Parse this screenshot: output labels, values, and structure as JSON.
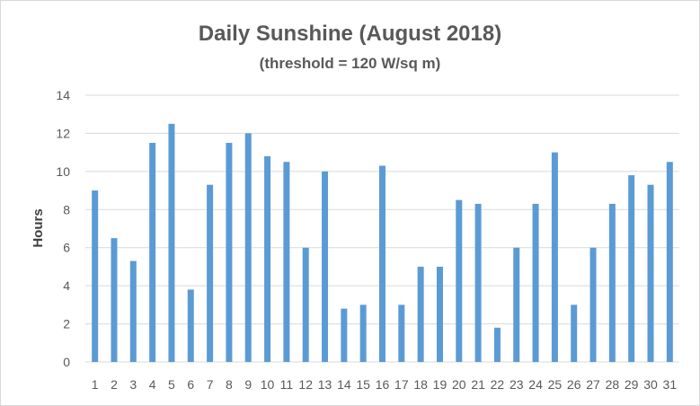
{
  "chart_data": {
    "type": "bar",
    "title": "Daily Sunshine (August 2018)",
    "subtitle": "(threshold = 120 W/sq m)",
    "xlabel": "",
    "ylabel": "Hours",
    "ylim": [
      0,
      14
    ],
    "yticks": [
      "0",
      "2",
      "4",
      "6",
      "8",
      "10",
      "12",
      "14"
    ],
    "categories": [
      "1",
      "2",
      "3",
      "4",
      "5",
      "6",
      "7",
      "8",
      "9",
      "10",
      "11",
      "12",
      "13",
      "14",
      "15",
      "16",
      "17",
      "18",
      "19",
      "20",
      "21",
      "22",
      "23",
      "24",
      "25",
      "26",
      "27",
      "28",
      "29",
      "30",
      "31"
    ],
    "values": [
      9.0,
      6.5,
      5.3,
      11.5,
      12.5,
      3.8,
      9.3,
      11.5,
      12.0,
      10.8,
      10.5,
      6.0,
      10.0,
      2.8,
      3.0,
      10.3,
      3.0,
      5.0,
      5.0,
      8.5,
      8.3,
      1.8,
      6.0,
      8.3,
      11.0,
      3.0,
      6.0,
      8.3,
      9.8,
      9.3,
      10.5
    ],
    "grid": true,
    "legend": "none",
    "bar_color": "#5b9bd5",
    "grid_color": "#d9d9d9"
  }
}
